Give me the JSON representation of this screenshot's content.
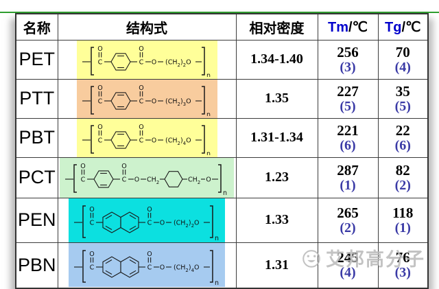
{
  "page": {
    "top_border_color": "#2f9e2f"
  },
  "table": {
    "header": {
      "name": "名称",
      "structure": "结构式",
      "density": "相对密度",
      "tm_prefix": "Tm",
      "tm_suffix": "/℃",
      "tg_prefix": "Tg",
      "tg_suffix": "/℃"
    },
    "rows": [
      {
        "name": "PET",
        "highlight": "#ffff99",
        "ring": "benzene",
        "linker": "chain",
        "chain_n": "2",
        "formula_text": "—[C(=O)-C6H4-C(=O)-O-(CH2)2-O-]n",
        "density": "1.34-1.40",
        "tm": "256",
        "tm_rank": "(3)",
        "tg": "70",
        "tg_rank": "(4)"
      },
      {
        "name": "PTT",
        "highlight": "#f8cc9e",
        "ring": "benzene",
        "linker": "chain",
        "chain_n": "3",
        "formula_text": "—[C(=O)-C6H4-C(=O)-O-(CH2)3-O-]n",
        "density": "1.35",
        "tm": "227",
        "tm_rank": "(5)",
        "tg": "35",
        "tg_rank": "(5)"
      },
      {
        "name": "PBT",
        "highlight": "#ffff99",
        "ring": "benzene",
        "linker": "chain",
        "chain_n": "4",
        "formula_text": "—[C(=O)-C6H4-C(=O)-O-(CH2)4-O-]n",
        "density": "1.31-1.34",
        "tm": "221",
        "tm_rank": "(6)",
        "tg": "22",
        "tg_rank": "(6)"
      },
      {
        "name": "PCT",
        "highlight": "#cdf2cd",
        "ring": "benzene",
        "linker": "cyclohexane",
        "chain_n": "",
        "formula_text": "—[C(=O)-C6H4-C(=O)-O-CH2-C6H10-CH2-O-]n",
        "density": "1.23",
        "tm": "287",
        "tm_rank": "(1)",
        "tg": "82",
        "tg_rank": "(2)"
      },
      {
        "name": "PEN",
        "highlight": "#0ce0e0",
        "ring": "naphthalene",
        "linker": "chain",
        "chain_n": "2",
        "formula_text": "—[C(=O)-C10H6-C(=O)-O-(CH2)2-O-]n",
        "density": "1.33",
        "tm": "265",
        "tm_rank": "(2)",
        "tg": "118",
        "tg_rank": "(1)"
      },
      {
        "name": "PBN",
        "highlight": "#a6cbf0",
        "ring": "naphthalene",
        "linker": "chain",
        "chain_n": "4",
        "formula_text": "—[C(=O)-C10H6-C(=O)-O-(CH2)4-O-]n",
        "density": "1.31",
        "tm": "245",
        "tm_rank": "(4)",
        "tg": "76",
        "tg_rank": "(3)"
      }
    ]
  },
  "watermark": {
    "text": "艾邦高分子"
  }
}
